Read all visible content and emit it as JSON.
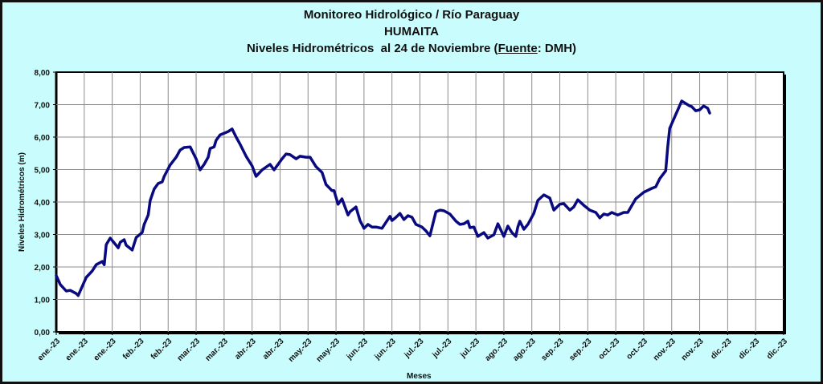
{
  "chart_data": {
    "type": "line",
    "title": {
      "line1": "Monitoreo Hidrológico / Río Paraguay",
      "line2": "HUMAITA",
      "line3_prefix": "Niveles Hidrométricos  al 24 de Noviembre (",
      "line3_source_label": "Fuente",
      "line3_suffix": ": DMH)"
    },
    "xlabel": "Meses",
    "ylabel": "Niveles Hidrométricos (m)",
    "ylim": [
      0,
      8
    ],
    "y_ticks": [
      "0,00",
      "1,00",
      "2,00",
      "3,00",
      "4,00",
      "5,00",
      "6,00",
      "7,00",
      "8,00"
    ],
    "xlim": [
      "2023-01-01",
      "2023-12-31"
    ],
    "x_ticks": [
      [
        "2023-01-01",
        "ene.-23"
      ],
      [
        "2023-01-15",
        "ene.-23"
      ],
      [
        "2023-01-29",
        "ene.-23"
      ],
      [
        "2023-02-12",
        "feb.-23"
      ],
      [
        "2023-02-26",
        "feb.-23"
      ],
      [
        "2023-03-12",
        "mar.-23"
      ],
      [
        "2023-03-26",
        "mar.-23"
      ],
      [
        "2023-04-09",
        "abr.-23"
      ],
      [
        "2023-04-23",
        "abr.-23"
      ],
      [
        "2023-05-07",
        "may.-23"
      ],
      [
        "2023-05-21",
        "may.-23"
      ],
      [
        "2023-06-04",
        "jun.-23"
      ],
      [
        "2023-06-18",
        "jun.-23"
      ],
      [
        "2023-07-02",
        "jul.-23"
      ],
      [
        "2023-07-16",
        "jul.-23"
      ],
      [
        "2023-07-30",
        "jul.-23"
      ],
      [
        "2023-08-13",
        "ago.-23"
      ],
      [
        "2023-08-27",
        "ago.-23"
      ],
      [
        "2023-09-10",
        "sep.-23"
      ],
      [
        "2023-09-24",
        "sep.-23"
      ],
      [
        "2023-10-08",
        "oct.-23"
      ],
      [
        "2023-10-22",
        "oct.-23"
      ],
      [
        "2023-11-05",
        "nov.-23"
      ],
      [
        "2023-11-19",
        "nov.-23"
      ],
      [
        "2023-12-03",
        "dic.-23"
      ],
      [
        "2023-12-17",
        "dic.-23"
      ],
      [
        "2023-12-31",
        "dic.-23"
      ]
    ],
    "grid": true,
    "colors": {
      "series": "#0a0a80",
      "background": "#c9fdfd",
      "plot": "#ffffff",
      "grid": "#8c8c8c"
    },
    "series": [
      {
        "points": [
          [
            "2023-01-01",
            1.73
          ],
          [
            "2023-01-03",
            1.46
          ],
          [
            "2023-01-06",
            1.26
          ],
          [
            "2023-01-08",
            1.28
          ],
          [
            "2023-01-11",
            1.18
          ],
          [
            "2023-01-12",
            1.12
          ],
          [
            "2023-01-14",
            1.4
          ],
          [
            "2023-01-16",
            1.68
          ],
          [
            "2023-01-19",
            1.88
          ],
          [
            "2023-01-21",
            2.07
          ],
          [
            "2023-01-24",
            2.17
          ],
          [
            "2023-01-25",
            2.07
          ],
          [
            "2023-01-26",
            2.69
          ],
          [
            "2023-01-28",
            2.89
          ],
          [
            "2023-01-30",
            2.74
          ],
          [
            "2023-02-01",
            2.59
          ],
          [
            "2023-02-02",
            2.76
          ],
          [
            "2023-02-04",
            2.84
          ],
          [
            "2023-02-05",
            2.67
          ],
          [
            "2023-02-08",
            2.52
          ],
          [
            "2023-02-10",
            2.91
          ],
          [
            "2023-02-13",
            3.06
          ],
          [
            "2023-02-14",
            3.31
          ],
          [
            "2023-02-16",
            3.6
          ],
          [
            "2023-02-17",
            4.05
          ],
          [
            "2023-02-19",
            4.4
          ],
          [
            "2023-02-21",
            4.57
          ],
          [
            "2023-02-23",
            4.62
          ],
          [
            "2023-02-24",
            4.79
          ],
          [
            "2023-02-27",
            5.14
          ],
          [
            "2023-03-02",
            5.38
          ],
          [
            "2023-03-04",
            5.6
          ],
          [
            "2023-03-06",
            5.68
          ],
          [
            "2023-03-09",
            5.7
          ],
          [
            "2023-03-12",
            5.33
          ],
          [
            "2023-03-14",
            4.99
          ],
          [
            "2023-03-16",
            5.16
          ],
          [
            "2023-03-18",
            5.38
          ],
          [
            "2023-03-19",
            5.65
          ],
          [
            "2023-03-21",
            5.7
          ],
          [
            "2023-03-22",
            5.9
          ],
          [
            "2023-03-24",
            6.07
          ],
          [
            "2023-03-28",
            6.17
          ],
          [
            "2023-03-30",
            6.25
          ],
          [
            "2023-04-01",
            6.0
          ],
          [
            "2023-04-03",
            5.78
          ],
          [
            "2023-04-06",
            5.41
          ],
          [
            "2023-04-09",
            5.11
          ],
          [
            "2023-04-11",
            4.79
          ],
          [
            "2023-04-14",
            4.99
          ],
          [
            "2023-04-18",
            5.16
          ],
          [
            "2023-04-20",
            4.99
          ],
          [
            "2023-04-22",
            5.16
          ],
          [
            "2023-04-24",
            5.33
          ],
          [
            "2023-04-26",
            5.48
          ],
          [
            "2023-04-28",
            5.46
          ],
          [
            "2023-05-01",
            5.33
          ],
          [
            "2023-05-03",
            5.41
          ],
          [
            "2023-05-06",
            5.38
          ],
          [
            "2023-05-08",
            5.38
          ],
          [
            "2023-05-11",
            5.09
          ],
          [
            "2023-05-14",
            4.91
          ],
          [
            "2023-05-16",
            4.54
          ],
          [
            "2023-05-19",
            4.35
          ],
          [
            "2023-05-20",
            4.35
          ],
          [
            "2023-05-22",
            3.93
          ],
          [
            "2023-05-24",
            4.1
          ],
          [
            "2023-05-27",
            3.6
          ],
          [
            "2023-05-28",
            3.7
          ],
          [
            "2023-05-31",
            3.85
          ],
          [
            "2023-06-02",
            3.43
          ],
          [
            "2023-06-04",
            3.19
          ],
          [
            "2023-06-06",
            3.31
          ],
          [
            "2023-06-08",
            3.23
          ],
          [
            "2023-06-10",
            3.23
          ],
          [
            "2023-06-13",
            3.19
          ],
          [
            "2023-06-17",
            3.56
          ],
          [
            "2023-06-18",
            3.43
          ],
          [
            "2023-06-20",
            3.53
          ],
          [
            "2023-06-22",
            3.65
          ],
          [
            "2023-06-24",
            3.46
          ],
          [
            "2023-06-26",
            3.58
          ],
          [
            "2023-06-28",
            3.53
          ],
          [
            "2023-06-30",
            3.31
          ],
          [
            "2023-07-03",
            3.23
          ],
          [
            "2023-07-05",
            3.11
          ],
          [
            "2023-07-07",
            2.96
          ],
          [
            "2023-07-10",
            3.7
          ],
          [
            "2023-07-12",
            3.75
          ],
          [
            "2023-07-14",
            3.73
          ],
          [
            "2023-07-17",
            3.63
          ],
          [
            "2023-07-20",
            3.41
          ],
          [
            "2023-07-22",
            3.31
          ],
          [
            "2023-07-24",
            3.33
          ],
          [
            "2023-07-26",
            3.41
          ],
          [
            "2023-07-27",
            3.21
          ],
          [
            "2023-07-29",
            3.23
          ],
          [
            "2023-07-31",
            2.94
          ],
          [
            "2023-08-03",
            3.06
          ],
          [
            "2023-08-05",
            2.89
          ],
          [
            "2023-08-08",
            2.99
          ],
          [
            "2023-08-10",
            3.33
          ],
          [
            "2023-08-13",
            2.94
          ],
          [
            "2023-08-15",
            3.26
          ],
          [
            "2023-08-17",
            3.06
          ],
          [
            "2023-08-19",
            2.94
          ],
          [
            "2023-08-20",
            3.23
          ],
          [
            "2023-08-21",
            3.41
          ],
          [
            "2023-08-23",
            3.16
          ],
          [
            "2023-08-25",
            3.31
          ],
          [
            "2023-08-28",
            3.65
          ],
          [
            "2023-08-30",
            4.05
          ],
          [
            "2023-09-02",
            4.22
          ],
          [
            "2023-09-05",
            4.12
          ],
          [
            "2023-09-07",
            3.75
          ],
          [
            "2023-09-10",
            3.93
          ],
          [
            "2023-09-12",
            3.95
          ],
          [
            "2023-09-15",
            3.75
          ],
          [
            "2023-09-17",
            3.85
          ],
          [
            "2023-09-19",
            4.07
          ],
          [
            "2023-09-22",
            3.9
          ],
          [
            "2023-09-25",
            3.75
          ],
          [
            "2023-09-28",
            3.68
          ],
          [
            "2023-09-30",
            3.51
          ],
          [
            "2023-10-02",
            3.63
          ],
          [
            "2023-10-04",
            3.6
          ],
          [
            "2023-10-06",
            3.68
          ],
          [
            "2023-10-09",
            3.6
          ],
          [
            "2023-10-12",
            3.68
          ],
          [
            "2023-10-14",
            3.68
          ],
          [
            "2023-10-18",
            4.1
          ],
          [
            "2023-10-22",
            4.3
          ],
          [
            "2023-10-26",
            4.42
          ],
          [
            "2023-10-28",
            4.47
          ],
          [
            "2023-10-30",
            4.72
          ],
          [
            "2023-11-02",
            4.96
          ],
          [
            "2023-11-03",
            5.7
          ],
          [
            "2023-11-04",
            6.27
          ],
          [
            "2023-11-07",
            6.69
          ],
          [
            "2023-11-10",
            7.11
          ],
          [
            "2023-11-14",
            6.96
          ],
          [
            "2023-11-15",
            6.94
          ],
          [
            "2023-11-17",
            6.81
          ],
          [
            "2023-11-19",
            6.84
          ],
          [
            "2023-11-21",
            6.96
          ],
          [
            "2023-11-23",
            6.89
          ],
          [
            "2023-11-24",
            6.74
          ]
        ]
      }
    ]
  }
}
